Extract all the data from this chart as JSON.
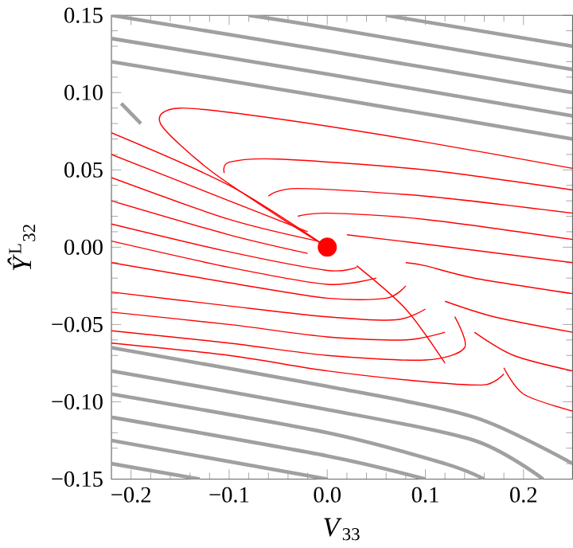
{
  "chart_data": {
    "type": "line",
    "xlabel": "*V*$_{33}$",
    "ylabel": "*Ŷ*$^{L}$$_{32}$",
    "xlim": [
      -0.22,
      0.25
    ],
    "ylim": [
      -0.15,
      0.15
    ],
    "xticks": [
      {
        "value": -0.2,
        "label": "−0.2"
      },
      {
        "value": -0.1,
        "label": "−0.1"
      },
      {
        "value": 0,
        "label": "0.0"
      },
      {
        "value": 0.1,
        "label": "0.1"
      },
      {
        "value": 0.2,
        "label": "0.2"
      }
    ],
    "yticks": [
      {
        "value": -0.15,
        "label": "−0.15"
      },
      {
        "value": -0.1,
        "label": "−0.10"
      },
      {
        "value": -0.05,
        "label": "−0.05"
      },
      {
        "value": 0,
        "label": "0.00"
      },
      {
        "value": 0.05,
        "label": "0.05"
      },
      {
        "value": 0.1,
        "label": "0.10"
      },
      {
        "value": 0.15,
        "label": "0.15"
      }
    ],
    "marker": "none",
    "line_style": "solid",
    "series": [
      {
        "color": "#a0a0a0",
        "x": [
          0.25,
          0.0,
          -0.22
        ],
        "values": [
          0.07,
          0.097,
          0.12
        ]
      },
      {
        "color": "#a0a0a0",
        "x": [
          0.25,
          0.0,
          -0.22
        ],
        "values": [
          0.085,
          0.112,
          0.135
        ]
      },
      {
        "color": "#a0a0a0",
        "x": [
          0.25,
          0.0,
          -0.22
        ],
        "values": [
          0.1,
          0.127,
          0.15
        ]
      },
      {
        "color": "#a0a0a0",
        "x": [
          0.25,
          0.0,
          -0.08
        ],
        "values": [
          0.115,
          0.142,
          0.15
        ]
      },
      {
        "color": "#a0a0a0",
        "x": [
          0.25,
          0.06
        ],
        "values": [
          0.13,
          0.15
        ]
      },
      {
        "color": "#a0a0a0",
        "x": [
          -0.19,
          -0.21
        ],
        "values": [
          0.08,
          0.093
        ]
      },
      {
        "color": "#a0a0a0",
        "x": [
          -0.22,
          0.0,
          0.15,
          0.25
        ],
        "values": [
          -0.065,
          -0.09,
          -0.11,
          -0.14
        ]
      },
      {
        "color": "#a0a0a0",
        "x": [
          -0.22,
          0.0,
          0.15,
          0.22
        ],
        "values": [
          -0.08,
          -0.105,
          -0.125,
          -0.15
        ]
      },
      {
        "color": "#a0a0a0",
        "x": [
          -0.22,
          0.0,
          0.12,
          0.16
        ],
        "values": [
          -0.095,
          -0.12,
          -0.14,
          -0.15
        ]
      },
      {
        "color": "#a0a0a0",
        "x": [
          -0.22,
          0.0,
          0.1
        ],
        "values": [
          -0.11,
          -0.135,
          -0.15
        ]
      },
      {
        "color": "#a0a0a0",
        "x": [
          -0.22,
          0.0
        ],
        "values": [
          -0.125,
          -0.15
        ]
      },
      {
        "color": "#a0a0a0",
        "x": [
          -0.22,
          -0.13
        ],
        "values": [
          -0.14,
          -0.15
        ]
      },
      {
        "color": "#ff0000",
        "x": [
          -0.22,
          -0.1,
          0.0
        ],
        "values": [
          0.074,
          0.04,
          0.0
        ]
      },
      {
        "color": "#ff0000",
        "x": [
          -0.22,
          -0.1,
          -0.02
        ],
        "values": [
          0.06,
          0.03,
          0.01
        ]
      },
      {
        "color": "#ff0000",
        "x": [
          -0.22,
          -0.1,
          -0.01
        ],
        "values": [
          0.045,
          0.018,
          0.004
        ]
      },
      {
        "color": "#ff0000",
        "x": [
          -0.22,
          -0.1,
          -0.02
        ],
        "values": [
          0.03,
          0.008,
          -0.004
        ]
      },
      {
        "color": "#ff0000",
        "x": [
          -0.22,
          -0.1,
          0.0,
          0.03
        ],
        "values": [
          0.015,
          -0.003,
          -0.015,
          -0.013
        ]
      },
      {
        "color": "#ff0000",
        "x": [
          -0.22,
          -0.1,
          0.0,
          0.05
        ],
        "values": [
          0.004,
          -0.013,
          -0.024,
          -0.02
        ]
      },
      {
        "color": "#ff0000",
        "x": [
          -0.22,
          -0.1,
          0.0,
          0.06,
          0.08
        ],
        "values": [
          -0.01,
          -0.023,
          -0.033,
          -0.033,
          -0.025
        ]
      },
      {
        "color": "#ff0000",
        "x": [
          -0.22,
          -0.1,
          0.0,
          0.07,
          0.1
        ],
        "values": [
          -0.029,
          -0.038,
          -0.045,
          -0.047,
          -0.04
        ]
      },
      {
        "color": "#ff0000",
        "x": [
          -0.22,
          -0.1,
          0.0,
          0.08,
          0.12
        ],
        "values": [
          -0.042,
          -0.05,
          -0.058,
          -0.06,
          -0.055
        ]
      },
      {
        "color": "#ff0000",
        "x": [
          -0.22,
          -0.1,
          0.0,
          0.1,
          0.14,
          0.13
        ],
        "values": [
          -0.054,
          -0.062,
          -0.07,
          -0.073,
          -0.065,
          -0.045
        ]
      },
      {
        "color": "#ff0000",
        "x": [
          -0.22,
          -0.1,
          0.0,
          0.1,
          0.16,
          0.18
        ],
        "values": [
          -0.062,
          -0.07,
          -0.08,
          -0.087,
          -0.089,
          -0.082
        ]
      },
      {
        "color": "#ff0000",
        "x": [
          0.25,
          0.1,
          -0.05,
          -0.15,
          -0.17,
          -0.12,
          -0.05,
          0.0
        ],
        "values": [
          0.051,
          0.068,
          0.083,
          0.09,
          0.08,
          0.05,
          0.02,
          0.0
        ]
      },
      {
        "color": "#ff0000",
        "x": [
          0.25,
          0.1,
          -0.05,
          -0.1,
          -0.105
        ],
        "values": [
          0.037,
          0.05,
          0.057,
          0.055,
          0.048
        ]
      },
      {
        "color": "#ff0000",
        "x": [
          0.25,
          0.1,
          -0.03,
          -0.06
        ],
        "values": [
          0.022,
          0.033,
          0.038,
          0.033
        ]
      },
      {
        "color": "#ff0000",
        "x": [
          0.25,
          0.1,
          0.0,
          -0.03
        ],
        "values": [
          0.005,
          0.018,
          0.022,
          0.02
        ]
      },
      {
        "color": "#ff0000",
        "x": [
          0.25,
          0.1,
          0.02
        ],
        "values": [
          -0.01,
          0.002,
          0.008
        ]
      },
      {
        "color": "#ff0000",
        "x": [
          0.25,
          0.15,
          0.1,
          0.08
        ],
        "values": [
          -0.03,
          -0.02,
          -0.012,
          -0.01
        ]
      },
      {
        "color": "#ff0000",
        "x": [
          0.25,
          0.17,
          0.12
        ],
        "values": [
          -0.055,
          -0.045,
          -0.035
        ]
      },
      {
        "color": "#ff0000",
        "x": [
          0.25,
          0.19,
          0.15
        ],
        "values": [
          -0.08,
          -0.07,
          -0.055
        ]
      },
      {
        "color": "#ff0000",
        "x": [
          0.25,
          0.2,
          0.18
        ],
        "values": [
          -0.106,
          -0.095,
          -0.078
        ]
      },
      {
        "color": "#ff0000",
        "x": [
          0.12,
          0.08,
          0.03
        ],
        "values": [
          -0.075,
          -0.04,
          -0.012
        ]
      },
      {
        "type": "scatter",
        "marker": "circle",
        "color": "#ff0000",
        "x": [
          0.0
        ],
        "values": [
          0.0
        ]
      }
    ]
  }
}
